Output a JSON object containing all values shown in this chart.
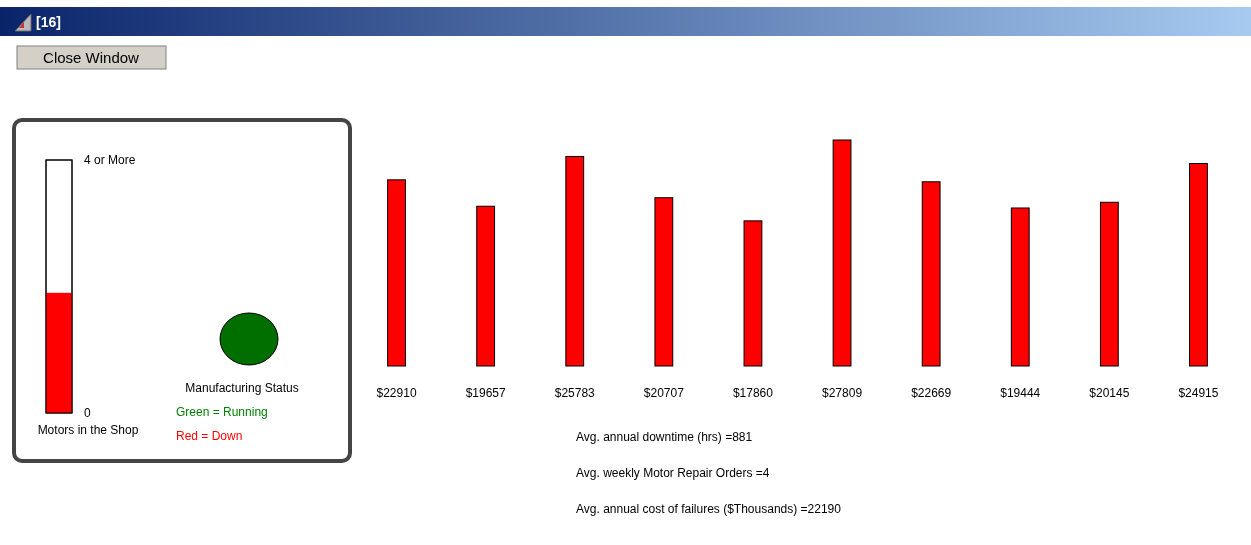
{
  "chart_data": [
    {
      "type": "bar",
      "categories": [
        null
      ],
      "values": [
        1.9
      ],
      "color": "#ff0000",
      "ylim": [
        0,
        4
      ],
      "yticks": [
        0,
        {
          "value": 4,
          "label": "4 or More"
        }
      ],
      "xlabel": "Motors in the Shop",
      "annotations": [
        "[16]",
        "Close Window",
        "Manufacturing Status",
        "Green = Running",
        "Red = Down"
      ]
    },
    {
      "type": "bar",
      "categories": [
        null,
        null,
        null,
        null,
        null,
        null,
        null,
        null,
        null,
        null
      ],
      "values": [
        22910,
        19657,
        25783,
        20707,
        17860,
        27809,
        22669,
        19444,
        20145,
        24915
      ],
      "color": "#ff0000",
      "value_labels": [
        "$22910",
        "$19657",
        "$25783",
        "$20707",
        "$17860",
        "$27809",
        "$22669",
        "$19444",
        "$20145",
        "$24915"
      ],
      "annotations": [
        "Avg. annual downtime (hrs) =881",
        "Avg. weekly Motor Repair Orders =4",
        "Avg. annual cost of failures ($Thousands) =22190"
      ]
    }
  ]
}
